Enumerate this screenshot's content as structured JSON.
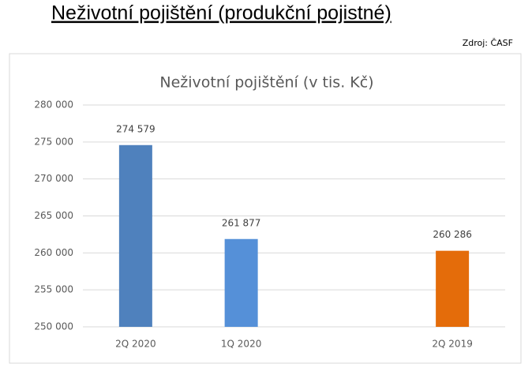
{
  "header": {
    "title": "Neživotní pojištění (produkční pojistné)",
    "source": "Zdroj: ČASF"
  },
  "chart_data": {
    "type": "bar",
    "title": "Neživotní pojištění (v tis. Kč)",
    "categories": [
      "2Q 2020",
      "1Q 2020",
      null,
      "2Q 2019"
    ],
    "values": [
      274579,
      261877,
      null,
      260286
    ],
    "value_labels": [
      "274 579",
      "261 877",
      null,
      "260 286"
    ],
    "colors": [
      "#4f81bd",
      "#5590d8",
      null,
      "#e46c0a"
    ],
    "ylim": [
      250000,
      280000
    ],
    "yticks": [
      {
        "value": 250000,
        "label": "250 000"
      },
      {
        "value": 255000,
        "label": "255 000"
      },
      {
        "value": 260000,
        "label": "260 000"
      },
      {
        "value": 265000,
        "label": "265 000"
      },
      {
        "value": 270000,
        "label": "270 000"
      },
      {
        "value": 275000,
        "label": "275 000"
      },
      {
        "value": 280000,
        "label": "280 000"
      }
    ],
    "grid": true
  }
}
